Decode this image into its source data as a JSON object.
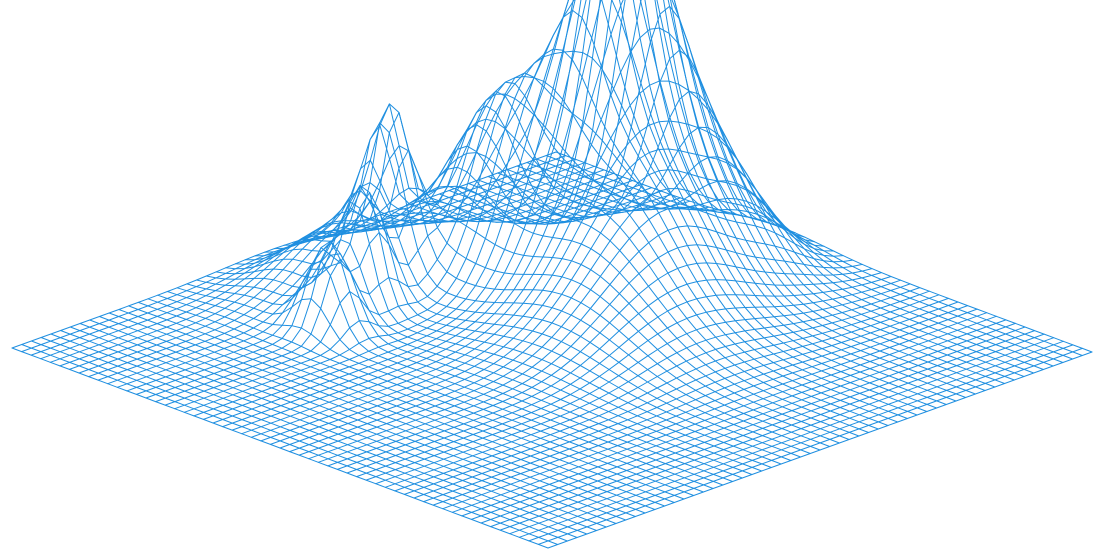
{
  "chart_data": {
    "type": "surface-wireframe",
    "grid": false,
    "colors": {
      "mesh": "#1f8fe0",
      "background": "#ffffff"
    },
    "mesh_resolution": 56,
    "x_range": [
      -2,
      2
    ],
    "y_range": [
      -2,
      2
    ],
    "zlim": [
      0,
      1.85
    ],
    "peaks": [
      {
        "x": -0.55,
        "y": -1.05,
        "height": 1.55,
        "spread_x": 0.28,
        "spread_y": 0.38
      },
      {
        "x": -0.95,
        "y": -0.55,
        "height": 0.85,
        "spread_x": 0.4,
        "spread_y": 0.33
      },
      {
        "x": -0.2,
        "y": -0.8,
        "height": 0.7,
        "spread_x": 0.55,
        "spread_y": 0.55
      },
      {
        "x": -1.25,
        "y": -0.05,
        "height": 0.7,
        "spread_x": 0.2,
        "spread_y": 0.13
      },
      {
        "x": -1.1,
        "y": 0.3,
        "height": 0.55,
        "spread_x": 0.16,
        "spread_y": 0.16
      },
      {
        "x": -1.0,
        "y": 0.65,
        "height": 0.45,
        "spread_x": 0.18,
        "spread_y": 0.15
      },
      {
        "x": -0.3,
        "y": -1.45,
        "height": 0.45,
        "spread_x": 0.45,
        "spread_y": 0.35
      },
      {
        "x": 0.2,
        "y": -0.3,
        "height": 0.22,
        "spread_x": 0.6,
        "spread_y": 0.55
      },
      {
        "x": -1.45,
        "y": 0.1,
        "height": 0.3,
        "spread_x": 0.35,
        "spread_y": 0.5
      }
    ]
  }
}
